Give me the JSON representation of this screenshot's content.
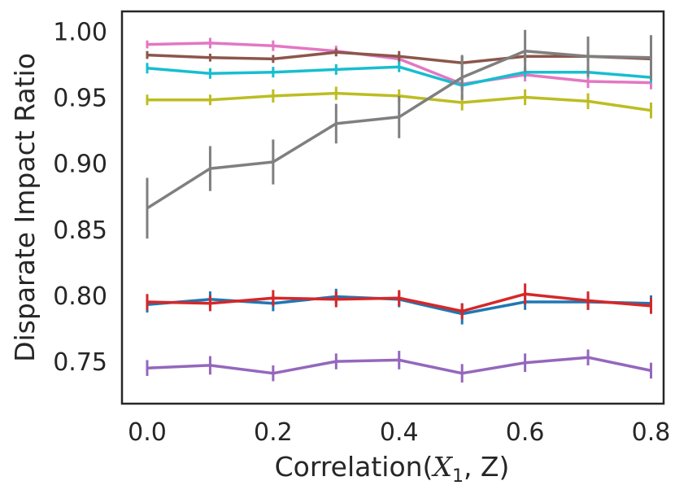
{
  "chart_data": {
    "type": "line",
    "title": "",
    "xlabel": "Correlation(",
    "xlabel_math": "X",
    "xlabel_sub": "1",
    "xlabel_tail": ", Z)",
    "ylabel": "Disparate Impact Ratio",
    "xlim": [
      -0.04,
      0.82
    ],
    "ylim": [
      0.718,
      1.015
    ],
    "x_ticks": [
      "0.0",
      "0.2",
      "0.4",
      "0.6",
      "0.8"
    ],
    "y_ticks": [
      "0.75",
      "0.80",
      "0.85",
      "0.90",
      "0.95",
      "1.00"
    ],
    "grid": false,
    "x": [
      0.0,
      0.1,
      0.2,
      0.3,
      0.4,
      0.5,
      0.6,
      0.7,
      0.8
    ],
    "series": [
      {
        "name": "pink",
        "color": "#e377c2",
        "values": [
          0.99,
          0.991,
          0.989,
          0.985,
          0.979,
          0.96,
          0.967,
          0.962,
          0.961
        ],
        "errors": [
          0.003,
          0.004,
          0.004,
          0.004,
          0.004,
          0.005,
          0.005,
          0.005,
          0.005
        ]
      },
      {
        "name": "brown",
        "color": "#8c564b",
        "values": [
          0.982,
          0.98,
          0.979,
          0.984,
          0.981,
          0.976,
          0.981,
          0.981,
          0.979
        ],
        "errors": [
          0.003,
          0.003,
          0.003,
          0.003,
          0.004,
          0.005,
          0.004,
          0.004,
          0.004
        ]
      },
      {
        "name": "cyan",
        "color": "#17becf",
        "values": [
          0.972,
          0.968,
          0.969,
          0.971,
          0.973,
          0.959,
          0.969,
          0.969,
          0.965
        ],
        "errors": [
          0.004,
          0.004,
          0.004,
          0.004,
          0.004,
          0.004,
          0.004,
          0.004,
          0.004
        ]
      },
      {
        "name": "olive",
        "color": "#bcbd22",
        "values": [
          0.948,
          0.948,
          0.951,
          0.953,
          0.951,
          0.946,
          0.95,
          0.947,
          0.94
        ],
        "errors": [
          0.004,
          0.004,
          0.005,
          0.005,
          0.005,
          0.006,
          0.006,
          0.006,
          0.006
        ]
      },
      {
        "name": "gray",
        "color": "#7f7f7f",
        "values": [
          0.866,
          0.896,
          0.901,
          0.93,
          0.935,
          0.965,
          0.985,
          0.981,
          0.98
        ],
        "errors": [
          0.023,
          0.017,
          0.017,
          0.015,
          0.016,
          0.017,
          0.016,
          0.015,
          0.017
        ]
      },
      {
        "name": "blue",
        "color": "#1f77b4",
        "values": [
          0.793,
          0.797,
          0.794,
          0.799,
          0.797,
          0.786,
          0.795,
          0.795,
          0.794
        ],
        "errors": [
          0.006,
          0.006,
          0.006,
          0.006,
          0.006,
          0.008,
          0.006,
          0.006,
          0.006
        ]
      },
      {
        "name": "red",
        "color": "#d62728",
        "values": [
          0.795,
          0.794,
          0.798,
          0.797,
          0.798,
          0.788,
          0.801,
          0.796,
          0.792
        ],
        "errors": [
          0.006,
          0.006,
          0.006,
          0.006,
          0.006,
          0.006,
          0.008,
          0.007,
          0.006
        ]
      },
      {
        "name": "purple",
        "color": "#9467bd",
        "values": [
          0.745,
          0.747,
          0.741,
          0.75,
          0.751,
          0.741,
          0.749,
          0.753,
          0.743
        ],
        "errors": [
          0.006,
          0.007,
          0.006,
          0.006,
          0.007,
          0.007,
          0.007,
          0.006,
          0.006
        ]
      }
    ]
  }
}
